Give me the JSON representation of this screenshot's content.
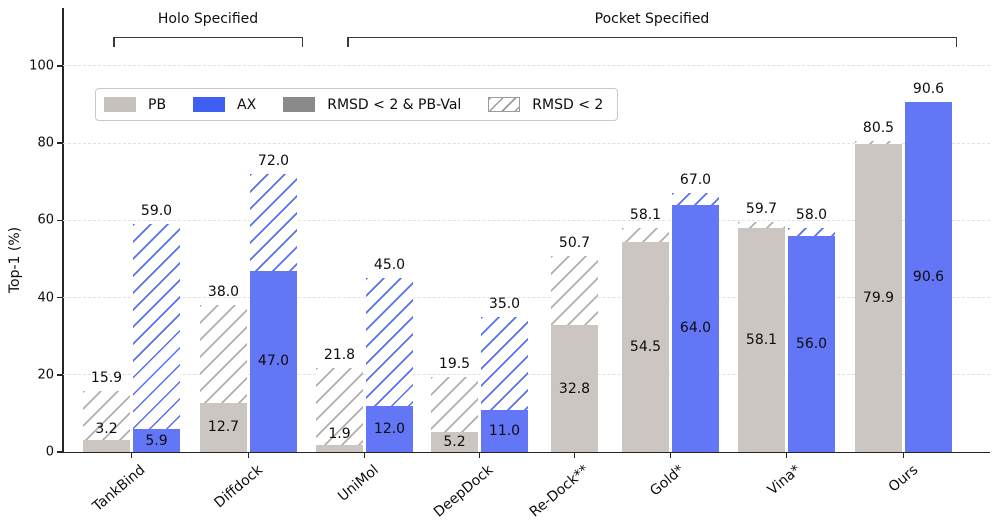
{
  "chart_data": {
    "type": "bar",
    "title": "",
    "ylabel": "Top-1 (%)",
    "ylim": [
      0,
      105
    ],
    "yticks": [
      0,
      20,
      40,
      60,
      80,
      100
    ],
    "grid": "horizontal-dashed",
    "legend_position": "upper-left-inside",
    "brackets": [
      {
        "label": "Holo Specified",
        "groups": [
          "TankBind",
          "Diffdock"
        ]
      },
      {
        "label": "Pocket Specified",
        "groups": [
          "UniMol",
          "DeepDock",
          "Re-Dock**",
          "Gold*",
          "Vina*",
          "Ours"
        ]
      }
    ],
    "legend": [
      {
        "label": "PB",
        "style": "solid",
        "color": "#c6c1bd"
      },
      {
        "label": "AX",
        "style": "solid",
        "color": "#3f5ff2"
      },
      {
        "label": "RMSD < 2 & PB-Val",
        "style": "solid",
        "color": "#8a8a8a"
      },
      {
        "label": "RMSD < 2",
        "style": "hatched",
        "color": "#9b9b9b"
      }
    ],
    "series_note": "solid fill = RMSD < 2 & PB-Val, hatched extension = RMSD < 2",
    "categories": [
      "TankBind",
      "Diffdock",
      "UniMol",
      "DeepDock",
      "Re-Dock**",
      "Gold*",
      "Vina*",
      "Ours"
    ],
    "groups": [
      {
        "name": "TankBind",
        "pb": {
          "solid": 3.2,
          "hatched": 15.9
        },
        "ax": {
          "solid": 5.9,
          "hatched": 59.0
        }
      },
      {
        "name": "Diffdock",
        "pb": {
          "solid": 12.7,
          "hatched": 38.0
        },
        "ax": {
          "solid": 47.0,
          "hatched": 72.0
        }
      },
      {
        "name": "UniMol",
        "pb": {
          "solid": 1.9,
          "hatched": 21.8
        },
        "ax": {
          "solid": 12.0,
          "hatched": 45.0
        }
      },
      {
        "name": "DeepDock",
        "pb": {
          "solid": 5.2,
          "hatched": 19.5
        },
        "ax": {
          "solid": 11.0,
          "hatched": 35.0
        }
      },
      {
        "name": "Re-Dock**",
        "pb": {
          "solid": 32.8,
          "hatched": 50.7
        },
        "ax": null
      },
      {
        "name": "Gold*",
        "pb": {
          "solid": 54.5,
          "hatched": 58.1
        },
        "ax": {
          "solid": 64.0,
          "hatched": 67.0
        }
      },
      {
        "name": "Vina*",
        "pb": {
          "solid": 58.1,
          "hatched": 59.7
        },
        "ax": {
          "solid": 56.0,
          "hatched": 58.0
        }
      },
      {
        "name": "Ours",
        "pb": {
          "solid": 79.9,
          "hatched": 80.5
        },
        "ax": {
          "solid": 90.6,
          "hatched": 90.6
        }
      }
    ],
    "colors": {
      "pb_bar": "#cbc6c1",
      "ax_bar": "#6276f6",
      "pb_hatch_line": "#b3aeaa",
      "ax_hatch_line": "#5570f2",
      "gridline": "#e0e0e0",
      "axis": "#262626",
      "text": "#0d0d0d"
    }
  }
}
